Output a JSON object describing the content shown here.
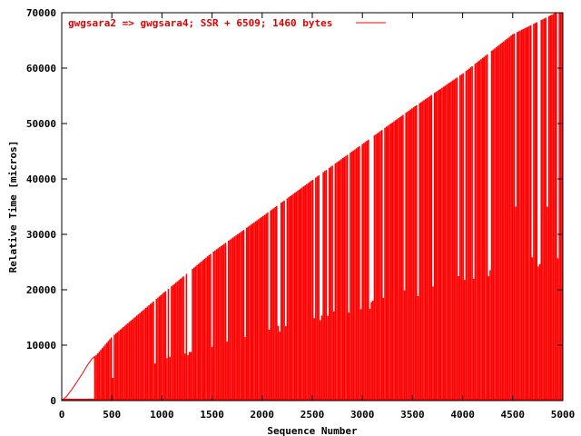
{
  "chart_data": {
    "type": "bar",
    "title": "",
    "xlabel": "Sequence Number",
    "ylabel": "Relative Time [micros]",
    "xlim": [
      0,
      5000
    ],
    "ylim": [
      0,
      70000
    ],
    "xticks": [
      "0",
      "500",
      "1000",
      "1500",
      "2000",
      "2500",
      "3000",
      "3500",
      "4000",
      "4500",
      "5000"
    ],
    "yticks": [
      "0",
      "10000",
      "20000",
      "30000",
      "40000",
      "50000",
      "60000",
      "70000"
    ],
    "legend": {
      "label": "gwgsara2 => gwgsara4; SSR + 6509; 1460 bytes",
      "position": "top-left"
    },
    "grid": false,
    "color": "#ff0000",
    "series": [
      {
        "name": "gwgsara2 => gwgsara4; SSR + 6509; 1460 bytes",
        "description_of_shape": "impulses from y=0 up to a linearly increasing time value",
        "x": [
          0,
          50,
          100,
          150,
          200,
          250,
          300,
          330,
          350,
          500,
          1000,
          1500,
          2000,
          2500,
          3000,
          3500,
          4000,
          4500,
          4930,
          5000
        ],
        "y": [
          0,
          800,
          2000,
          3300,
          4700,
          6200,
          7500,
          8000,
          8300,
          11500,
          19200,
          26700,
          33200,
          39800,
          46300,
          52800,
          59000,
          66100,
          70000,
          70000
        ]
      }
    ]
  }
}
